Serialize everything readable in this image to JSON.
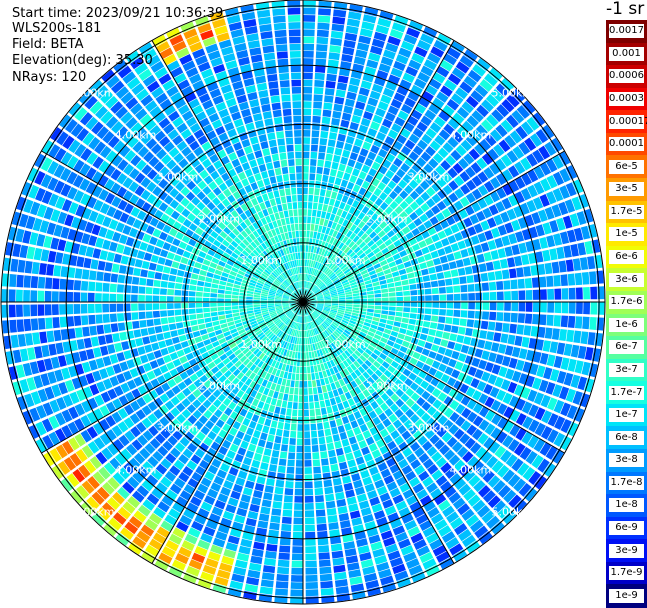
{
  "header": {
    "start_time": "Start time: 2023/09/21 10:36:39",
    "instrument": "WLS200s-181",
    "field": "Field: BETA",
    "elevation": "Elevation(deg): 35.30",
    "nrays": "NRays: 120"
  },
  "colorbar": {
    "unit": "-1 sr",
    "levels": [
      {
        "label": "0.0017",
        "color": "#7f0000"
      },
      {
        "label": "0.001",
        "color": "#a40000"
      },
      {
        "label": "0.0006",
        "color": "#cc0000"
      },
      {
        "label": "0.0003",
        "color": "#f00000"
      },
      {
        "label": "0.00017",
        "color": "#ff2400"
      },
      {
        "label": "0.0001",
        "color": "#ff4a00"
      },
      {
        "label": "6e-5",
        "color": "#ff7200"
      },
      {
        "label": "3e-5",
        "color": "#ff9a00"
      },
      {
        "label": "1.7e-5",
        "color": "#ffc200"
      },
      {
        "label": "1e-5",
        "color": "#ffe900"
      },
      {
        "label": "6e-6",
        "color": "#f1fc06"
      },
      {
        "label": "3e-6",
        "color": "#c7ff30"
      },
      {
        "label": "1.7e-6",
        "color": "#a0ff56"
      },
      {
        "label": "1e-6",
        "color": "#7dff7a"
      },
      {
        "label": "6e-7",
        "color": "#56ffa0"
      },
      {
        "label": "3e-7",
        "color": "#30ffc7"
      },
      {
        "label": "1.7e-7",
        "color": "#16ffe1"
      },
      {
        "label": "1e-7",
        "color": "#00e4f8"
      },
      {
        "label": "6e-8",
        "color": "#00c0ff"
      },
      {
        "label": "3e-8",
        "color": "#009cff"
      },
      {
        "label": "1.7e-8",
        "color": "#0078ff"
      },
      {
        "label": "1e-8",
        "color": "#0058ff"
      },
      {
        "label": "6e-9",
        "color": "#0030ff"
      },
      {
        "label": "3e-9",
        "color": "#0010f4"
      },
      {
        "label": "1.7e-9",
        "color": "#0000c8"
      },
      {
        "label": "1e-9",
        "color": "#00007f"
      }
    ]
  },
  "chart_data": {
    "type": "heatmap",
    "projection": "polar (PPI scan)",
    "field": "BETA",
    "elevation_deg": 35.3,
    "n_rays": 120,
    "rays_azimuth_deg": [
      0,
      360
    ],
    "range_rings_km": [
      1,
      2,
      3,
      4,
      5
    ],
    "range_ring_labels": [
      "1.00km",
      "2.00km",
      "3.00km",
      "4.00km",
      "5.00km"
    ],
    "radial_lines_every_deg": 30,
    "max_range_km": 5.1,
    "color_scale": "log",
    "value_range": [
      1e-09,
      0.0017
    ],
    "unit": "sr^-1",
    "typical_values": [
      {
        "range_km": [
          0,
          2.5
        ],
        "value": 1.7e-07,
        "description_color": "cyan"
      },
      {
        "range_km": [
          2.5,
          5.1
        ],
        "value": 3e-08,
        "description_color": "blue"
      }
    ],
    "high_returns": [
      {
        "azimuth_deg": [
          330,
          345
        ],
        "range_km": [
          4.6,
          5.1
        ],
        "value_max": 0.0003
      },
      {
        "azimuth_deg": [
          195,
          240
        ],
        "range_km": [
          4.4,
          5.1
        ],
        "value_max": 0.0003
      }
    ]
  }
}
